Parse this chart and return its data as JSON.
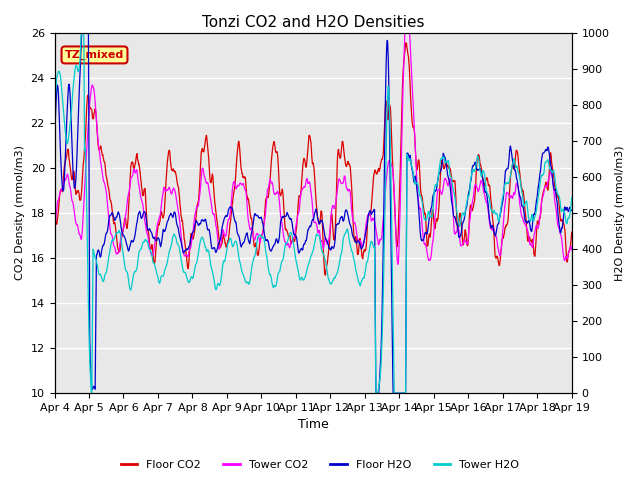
{
  "title": "Tonzi CO2 and H2O Densities",
  "xlabel": "Time",
  "ylabel_left": "CO2 Density (mmol/m3)",
  "ylabel_right": "H2O Density (mmol/m3)",
  "ylim_left": [
    10,
    26
  ],
  "ylim_right": [
    0,
    1000
  ],
  "annotation_text": "TZ_mixed",
  "annotation_facecolor": "#ffff99",
  "annotation_edgecolor": "#cc0000",
  "colors": {
    "floor_co2": "#dd0000",
    "tower_co2": "#ff00ff",
    "floor_h2o": "#0000cc",
    "tower_h2o": "#00cccc"
  },
  "legend_labels": [
    "Floor CO2",
    "Tower CO2",
    "Floor H2O",
    "Tower H2O"
  ],
  "x_tick_labels": [
    "Apr 4",
    "Apr 5",
    "Apr 6",
    "Apr 7",
    "Apr 8",
    "Apr 9",
    "Apr 10",
    "Apr 11",
    "Apr 12",
    "Apr 13",
    "Apr 14",
    "Apr 15",
    "Apr 16",
    "Apr 17",
    "Apr 18",
    "Apr 19"
  ],
  "n_points": 2000,
  "seed": 7
}
